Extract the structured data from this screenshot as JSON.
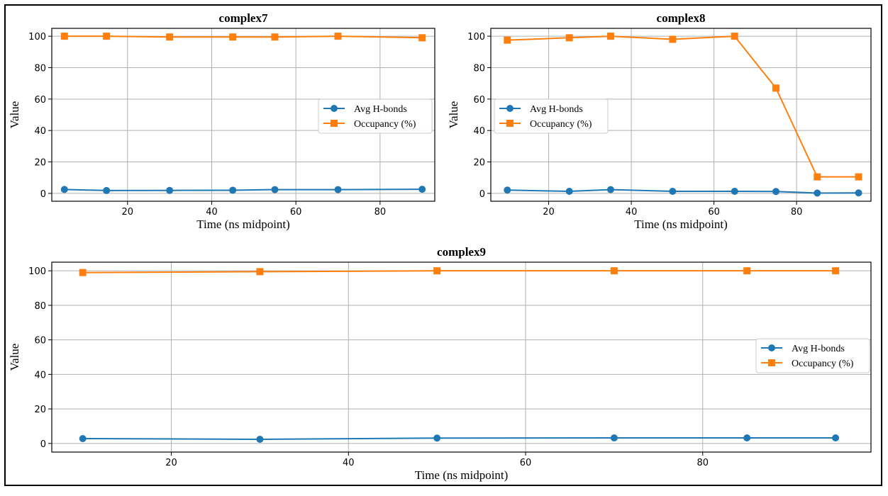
{
  "chart_data": [
    {
      "type": "line",
      "title": "complex7",
      "xlabel": "Time (ns midpoint)",
      "ylabel": "Value",
      "xlim": [
        2,
        93
      ],
      "ylim": [
        -5,
        105
      ],
      "xticks": [
        20,
        40,
        60,
        80
      ],
      "yticks": [
        0,
        20,
        40,
        60,
        80,
        100
      ],
      "grid": true,
      "legend_position": "center-right",
      "series": [
        {
          "name": "Avg H-bonds",
          "marker": "circle",
          "color": "#1f77b4",
          "points": [
            [
              5,
              2.5
            ],
            [
              15,
              1.8
            ],
            [
              30,
              1.9
            ],
            [
              45,
              2.0
            ],
            [
              55,
              2.4
            ],
            [
              70,
              2.4
            ],
            [
              90,
              2.6
            ]
          ]
        },
        {
          "name": "Occupancy (%)",
          "marker": "square",
          "color": "#ff7f0e",
          "points": [
            [
              5,
              100
            ],
            [
              15,
              100
            ],
            [
              30,
              99.5
            ],
            [
              45,
              99.5
            ],
            [
              55,
              99.5
            ],
            [
              70,
              100
            ],
            [
              90,
              99
            ]
          ]
        }
      ]
    },
    {
      "type": "line",
      "title": "complex8",
      "xlabel": "Time (ns midpoint)",
      "ylabel": "Value",
      "xlim": [
        6,
        98
      ],
      "ylim": [
        -5,
        105
      ],
      "xticks": [
        20,
        40,
        60,
        80
      ],
      "yticks": [
        0,
        20,
        40,
        60,
        80,
        100
      ],
      "grid": true,
      "legend_position": "center-left",
      "series": [
        {
          "name": "Avg H-bonds",
          "marker": "circle",
          "color": "#1f77b4",
          "points": [
            [
              10,
              2.1
            ],
            [
              25,
              1.3
            ],
            [
              35,
              2.4
            ],
            [
              50,
              1.3
            ],
            [
              65,
              1.3
            ],
            [
              75,
              1.2
            ],
            [
              85,
              0.2
            ],
            [
              95,
              0.3
            ]
          ]
        },
        {
          "name": "Occupancy (%)",
          "marker": "square",
          "color": "#ff7f0e",
          "points": [
            [
              10,
              97.5
            ],
            [
              25,
              99
            ],
            [
              35,
              100
            ],
            [
              50,
              98
            ],
            [
              65,
              100
            ],
            [
              75,
              67
            ],
            [
              85,
              10.5
            ],
            [
              95,
              10.5
            ]
          ]
        }
      ]
    },
    {
      "type": "line",
      "title": "complex9",
      "xlabel": "Time (ns midpoint)",
      "ylabel": "Value",
      "xlim": [
        6.5,
        99
      ],
      "ylim": [
        -5,
        105
      ],
      "xticks": [
        20,
        40,
        60,
        80
      ],
      "yticks": [
        0,
        20,
        40,
        60,
        80,
        100
      ],
      "grid": true,
      "legend_position": "center-right",
      "series": [
        {
          "name": "Avg H-bonds",
          "marker": "circle",
          "color": "#1f77b4",
          "points": [
            [
              10,
              2.8
            ],
            [
              30,
              2.4
            ],
            [
              50,
              3.1
            ],
            [
              70,
              3.2
            ],
            [
              85,
              3.2
            ],
            [
              95,
              3.2
            ]
          ]
        },
        {
          "name": "Occupancy (%)",
          "marker": "square",
          "color": "#ff7f0e",
          "points": [
            [
              10,
              99
            ],
            [
              30,
              99.5
            ],
            [
              50,
              100
            ],
            [
              70,
              100
            ],
            [
              85,
              100
            ],
            [
              95,
              100
            ]
          ]
        }
      ]
    }
  ]
}
